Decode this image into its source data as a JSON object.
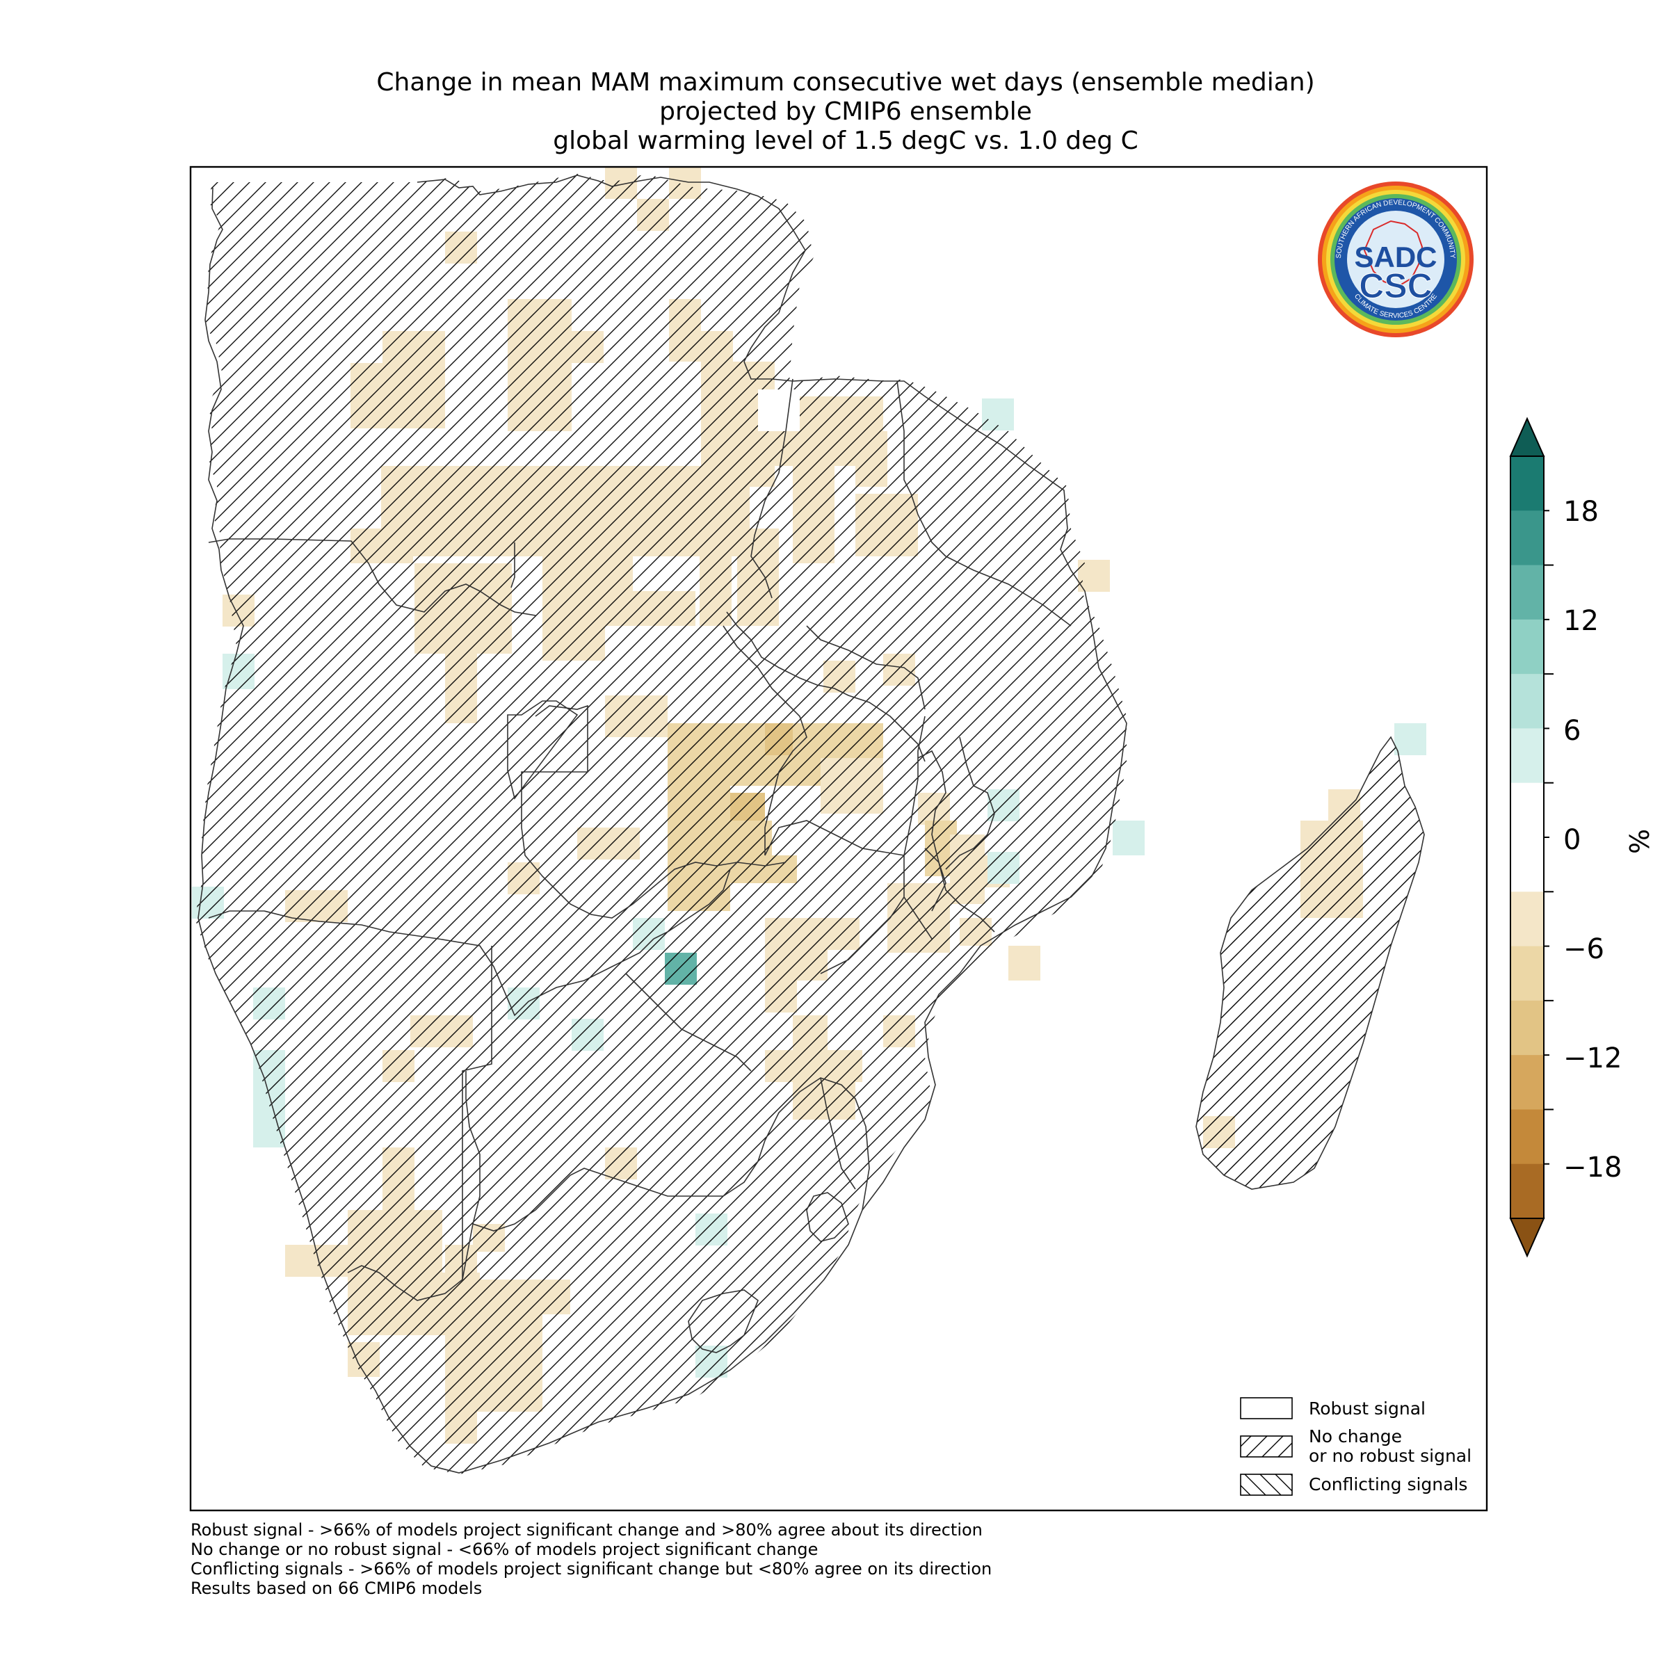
{
  "title": {
    "line1": "Change in mean MAM maximum consecutive wet days (ensemble median)",
    "line2": "projected by CMIP6 ensemble",
    "line3": "global warming level of 1.5 degC vs. 1.0 deg C"
  },
  "logo": {
    "ring_text_top": "SOUTHERN AFRICAN DEVELOPMENT COMMUNITY",
    "ring_text_bottom": "CLIMATE SERVICES CENTRE",
    "initials_top": "SADC",
    "initials_bottom": "CSC"
  },
  "colorbar": {
    "unit": "%",
    "ticks": [
      "18",
      "12",
      "6",
      "0",
      "−6",
      "−12",
      "−18"
    ],
    "colors": [
      "#1b7b71",
      "#3a968b",
      "#62b3a7",
      "#8fd0c4",
      "#b5e2da",
      "#d6f0eb",
      "#ffffff",
      "#ffffff",
      "#f4e6c8",
      "#ecd7a6",
      "#e2c485",
      "#d6a75d",
      "#c4893a",
      "#a96b24"
    ],
    "over_color": "#0f5d55",
    "under_color": "#8a5214"
  },
  "legend": {
    "items": [
      {
        "label": "Robust signal",
        "pattern": "none"
      },
      {
        "label": "No change\nor no robust signal",
        "pattern": "forward-hatch"
      },
      {
        "label": "Conflicting signals",
        "pattern": "back-hatch"
      }
    ]
  },
  "footnotes": [
    "Robust signal - >66% of models project significant change and >80% agree about its direction",
    "No change or no robust signal - <66% of models project significant change",
    "Conflicting signals - >66% of models project significant change but <80% agree on its direction",
    "Results based on 66 CMIP6 models"
  ]
}
